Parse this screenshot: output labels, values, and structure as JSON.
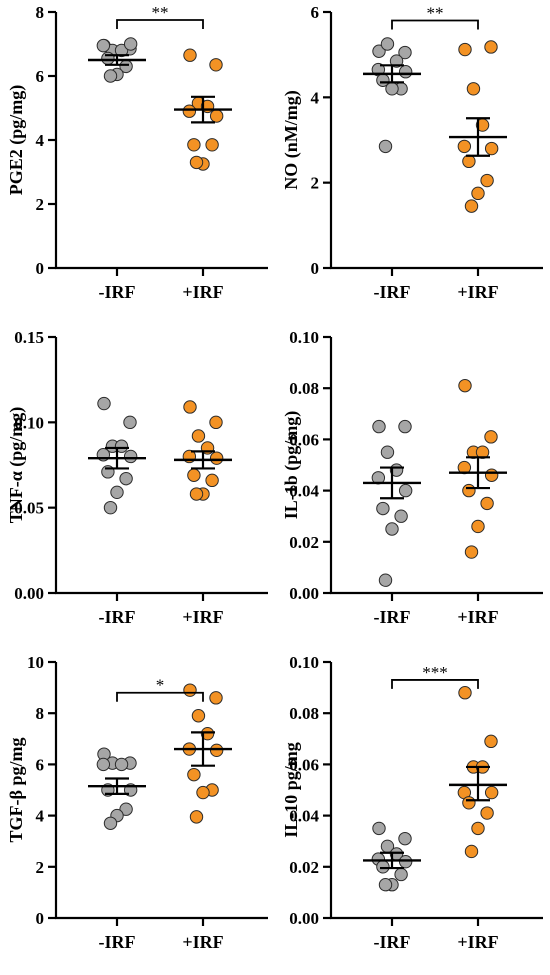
{
  "colors": {
    "group_1": "#a6a6a6",
    "group_2": "#f39224",
    "marker_edge": "#2b2b2b",
    "axis": "#000000"
  },
  "chart_data": [
    {
      "type": "scatter",
      "ylabel": "PGE2 (pg/mg)",
      "ylim": [
        0,
        8
      ],
      "yticks": [
        "0",
        "2",
        "4",
        "6",
        "8"
      ],
      "categories": [
        "-IRF",
        "+IRF"
      ],
      "series": [
        {
          "values": [
            6.95,
            6.85,
            6.8,
            6.8,
            6.95,
            7.0,
            6.55,
            6.3,
            6.05,
            6.0
          ],
          "mean": 6.5,
          "sem_range": [
            6.35,
            6.65
          ]
        },
        {
          "values": [
            6.65,
            6.35,
            5.15,
            5.05,
            4.9,
            4.75,
            3.85,
            3.85,
            3.25,
            3.3
          ],
          "mean": 4.95,
          "sem_range": [
            4.55,
            5.35
          ]
        }
      ],
      "significance": {
        "label": "**",
        "y": 7.75
      }
    },
    {
      "type": "scatter",
      "ylabel": "NO (nM/mg)",
      "ylim": [
        0,
        6
      ],
      "yticks": [
        "0",
        "2",
        "4",
        "6"
      ],
      "categories": [
        "-IRF",
        "+IRF"
      ],
      "series": [
        {
          "values": [
            5.08,
            5.05,
            5.25,
            4.85,
            4.65,
            4.6,
            4.4,
            4.2,
            4.2,
            2.85
          ],
          "mean": 4.55,
          "sem_range": [
            4.35,
            4.75
          ]
        },
        {
          "values": [
            5.12,
            5.18,
            4.2,
            3.35,
            2.85,
            2.8,
            2.5,
            2.05,
            1.75,
            1.45
          ],
          "mean": 3.07,
          "sem_range": [
            2.63,
            3.51
          ]
        }
      ],
      "significance": {
        "label": "**",
        "y": 5.8
      }
    },
    {
      "type": "scatter",
      "ylabel": "TNF-α (pg/mg)",
      "ylim": [
        0,
        0.15
      ],
      "yticks": [
        "0.00",
        "0.05",
        "0.10",
        "0.15"
      ],
      "categories": [
        "-IRF",
        "+IRF"
      ],
      "series": [
        {
          "values": [
            0.111,
            0.1,
            0.086,
            0.086,
            0.081,
            0.08,
            0.071,
            0.067,
            0.059,
            0.05
          ],
          "mean": 0.079,
          "sem_range": [
            0.073,
            0.085
          ]
        },
        {
          "values": [
            0.109,
            0.1,
            0.092,
            0.085,
            0.08,
            0.079,
            0.069,
            0.066,
            0.058,
            0.058
          ],
          "mean": 0.078,
          "sem_range": [
            0.073,
            0.083
          ]
        }
      ],
      "significance": null
    },
    {
      "type": "scatter",
      "ylabel": "IL-1b (pg/mg)",
      "ylim": [
        0,
        0.1
      ],
      "yticks": [
        "0.00",
        "0.02",
        "0.04",
        "0.06",
        "0.08",
        "0.10"
      ],
      "categories": [
        "-IRF",
        "+IRF"
      ],
      "series": [
        {
          "values": [
            0.065,
            0.065,
            0.055,
            0.048,
            0.045,
            0.04,
            0.033,
            0.03,
            0.025,
            0.005
          ],
          "mean": 0.043,
          "sem_range": [
            0.037,
            0.049
          ]
        },
        {
          "values": [
            0.081,
            0.061,
            0.055,
            0.055,
            0.049,
            0.046,
            0.04,
            0.035,
            0.026,
            0.016
          ],
          "mean": 0.047,
          "sem_range": [
            0.041,
            0.053
          ]
        }
      ],
      "significance": null
    },
    {
      "type": "scatter",
      "ylabel": "TGF-β pg/mg",
      "ylim": [
        0,
        10
      ],
      "yticks": [
        "0",
        "2",
        "4",
        "6",
        "8",
        "10"
      ],
      "categories": [
        "-IRF",
        "+IRF"
      ],
      "series": [
        {
          "values": [
            6.4,
            6.05,
            6.05,
            6.0,
            6.0,
            5.0,
            5.0,
            4.25,
            4.0,
            3.7
          ],
          "mean": 5.15,
          "sem_range": [
            4.85,
            5.45
          ]
        },
        {
          "values": [
            8.9,
            8.6,
            7.9,
            7.2,
            6.6,
            6.55,
            5.6,
            5.0,
            4.9,
            3.95
          ],
          "mean": 6.6,
          "sem_range": [
            5.95,
            7.25
          ]
        }
      ],
      "significance": {
        "label": "*",
        "y": 8.8
      }
    },
    {
      "type": "scatter",
      "ylabel": "IL-10 pg/mg",
      "ylim": [
        0,
        0.1
      ],
      "yticks": [
        "0.00",
        "0.02",
        "0.04",
        "0.06",
        "0.08",
        "0.10"
      ],
      "categories": [
        "-IRF",
        "+IRF"
      ],
      "series": [
        {
          "values": [
            0.035,
            0.031,
            0.028,
            0.025,
            0.023,
            0.022,
            0.02,
            0.017,
            0.013,
            0.013
          ],
          "mean": 0.0225,
          "sem_range": [
            0.0195,
            0.0255
          ]
        },
        {
          "values": [
            0.088,
            0.069,
            0.059,
            0.059,
            0.049,
            0.049,
            0.045,
            0.041,
            0.035,
            0.026
          ],
          "mean": 0.052,
          "sem_range": [
            0.046,
            0.059
          ]
        }
      ],
      "significance": {
        "label": "***",
        "y": 0.093
      }
    }
  ]
}
